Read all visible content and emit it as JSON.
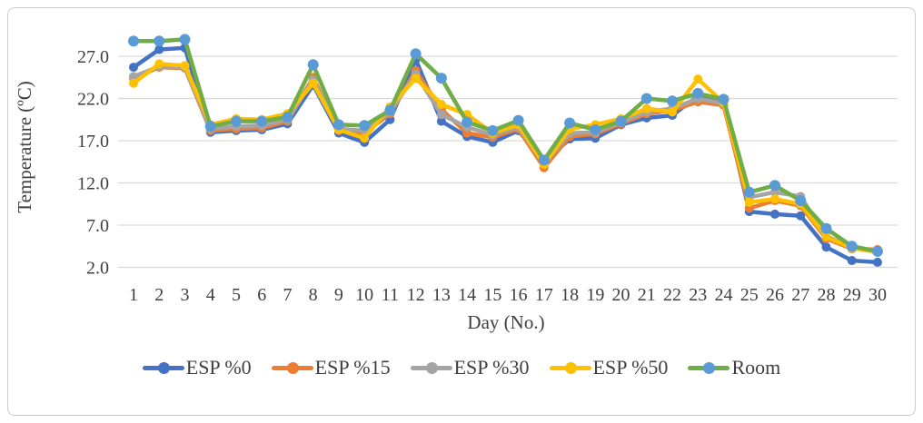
{
  "chart_data": {
    "type": "line",
    "title": "",
    "xlabel": "Day (No.)",
    "ylabel": "Temperature (ºC)",
    "grid": true,
    "legend_position": "bottom",
    "ylim": [
      2,
      29.5
    ],
    "ytick_values": [
      27,
      22,
      17,
      12,
      7,
      2
    ],
    "ytick_labels": [
      "27.0",
      "22.0",
      "17.0",
      "12.0",
      "7.0",
      "2.0"
    ],
    "x": [
      1,
      2,
      3,
      4,
      5,
      6,
      7,
      8,
      9,
      10,
      11,
      12,
      13,
      14,
      15,
      16,
      17,
      18,
      19,
      20,
      21,
      22,
      23,
      24,
      25,
      26,
      27,
      28,
      29,
      30
    ],
    "series": [
      {
        "name": "ESP %0",
        "color": "#4472C4",
        "marker_color": "#4472C4",
        "values": [
          25.7,
          27.8,
          28.0,
          18.0,
          18.2,
          18.3,
          19.0,
          23.6,
          17.9,
          16.8,
          19.5,
          26.6,
          19.3,
          17.5,
          16.8,
          18.2,
          14.5,
          17.2,
          17.3,
          18.9,
          19.7,
          20.0,
          22.3,
          21.6,
          8.6,
          8.3,
          8.1,
          4.4,
          2.8,
          2.6
        ]
      },
      {
        "name": "ESP %15",
        "color": "#ED7D31",
        "marker_color": "#ED7D31",
        "values": [
          24.4,
          25.7,
          25.6,
          18.2,
          18.4,
          18.5,
          19.3,
          24.5,
          18.2,
          17.9,
          20.2,
          25.3,
          20.7,
          17.9,
          17.4,
          18.4,
          13.8,
          17.5,
          17.8,
          19.0,
          20.2,
          20.6,
          21.6,
          21.2,
          9.0,
          9.9,
          9.3,
          5.4,
          4.2,
          4.1
        ]
      },
      {
        "name": "ESP %30",
        "color": "#A5A5A5",
        "marker_color": "#A5A5A5",
        "values": [
          24.6,
          25.8,
          25.7,
          18.4,
          18.7,
          18.8,
          19.5,
          24.2,
          18.4,
          18.2,
          20.4,
          24.9,
          20.1,
          18.6,
          17.7,
          18.6,
          14.2,
          17.9,
          18.0,
          19.2,
          20.4,
          20.8,
          22.0,
          21.4,
          10.3,
          10.9,
          10.4,
          5.7,
          4.4,
          3.9
        ]
      },
      {
        "name": "ESP %50",
        "color": "#FFC000",
        "marker_color": "#FFC000",
        "values": [
          23.8,
          26.1,
          25.9,
          18.9,
          19.6,
          19.5,
          20.2,
          23.8,
          18.3,
          17.3,
          21.0,
          24.4,
          21.3,
          20.1,
          17.9,
          18.9,
          14.2,
          18.4,
          18.9,
          19.6,
          20.8,
          20.4,
          24.3,
          21.5,
          9.7,
          10.1,
          9.5,
          5.6,
          4.3,
          3.8
        ]
      },
      {
        "name": "Room",
        "color": "#70AD47",
        "marker_color": "#5B9BD5",
        "values": [
          28.8,
          28.8,
          29.0,
          18.7,
          19.3,
          19.3,
          19.8,
          26.0,
          18.9,
          18.8,
          20.6,
          27.3,
          24.4,
          19.2,
          18.2,
          19.4,
          14.7,
          19.1,
          18.3,
          19.3,
          22.0,
          21.7,
          22.6,
          21.9,
          10.9,
          11.7,
          9.9,
          6.6,
          4.5,
          3.9
        ]
      }
    ]
  }
}
